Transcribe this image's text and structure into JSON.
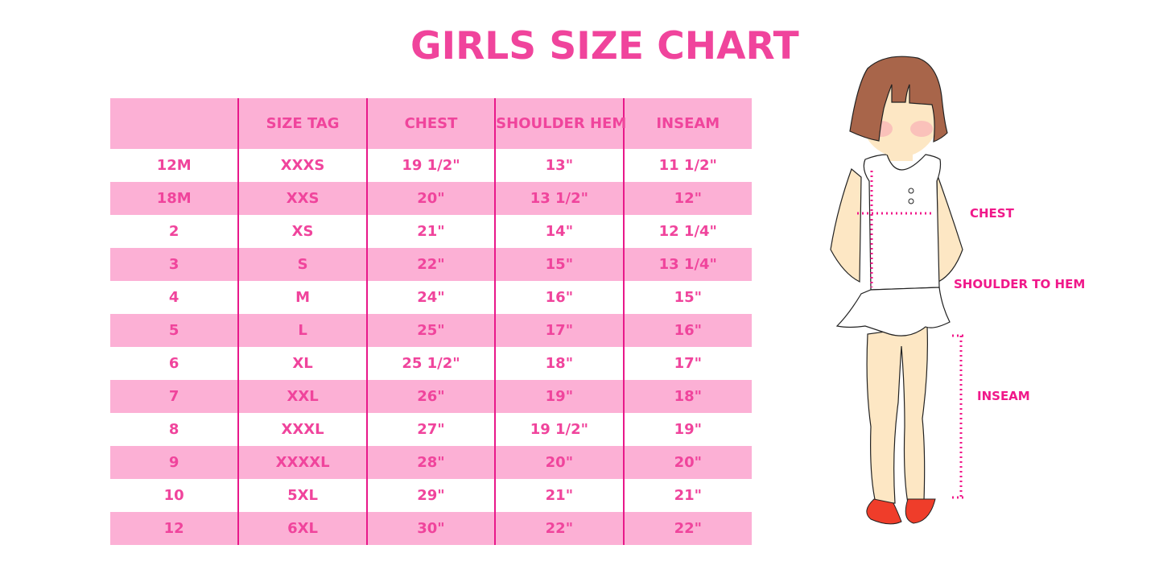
{
  "title": "GIRLS SIZE CHART",
  "table": {
    "headers": [
      "",
      "SIZE TAG",
      "CHEST",
      "SHOULDER HEM",
      "INSEAM"
    ],
    "rows": [
      [
        "12M",
        "XXXS",
        "19 1/2\"",
        "13\"",
        "11 1/2\""
      ],
      [
        "18M",
        "XXS",
        "20\"",
        "13 1/2\"",
        "12\""
      ],
      [
        "2",
        "XS",
        "21\"",
        "14\"",
        "12 1/4\""
      ],
      [
        "3",
        "S",
        "22\"",
        "15\"",
        "13 1/4\""
      ],
      [
        "4",
        "M",
        "24\"",
        "16\"",
        "15\""
      ],
      [
        "5",
        "L",
        "25\"",
        "17\"",
        "16\""
      ],
      [
        "6",
        "XL",
        "25 1/2\"",
        "18\"",
        "17\""
      ],
      [
        "7",
        "XXL",
        "26\"",
        "19\"",
        "18\""
      ],
      [
        "8",
        "XXXL",
        "27\"",
        "19 1/2\"",
        "19\""
      ],
      [
        "9",
        "XXXXL",
        "28\"",
        "20\"",
        "20\""
      ],
      [
        "10",
        "5XL",
        "29\"",
        "21\"",
        "21\""
      ],
      [
        "12",
        "6XL",
        "30\"",
        "22\"",
        "22\""
      ]
    ]
  },
  "diagram": {
    "chest_label": "CHEST",
    "shoulder_label": "SHOULDER TO HEM",
    "inseam_label": "INSEAM"
  },
  "colors": {
    "accent": "#f0449c",
    "row_pink": "#fcb0d5",
    "divider": "#e8188a",
    "measure_line": "#f0188a"
  }
}
